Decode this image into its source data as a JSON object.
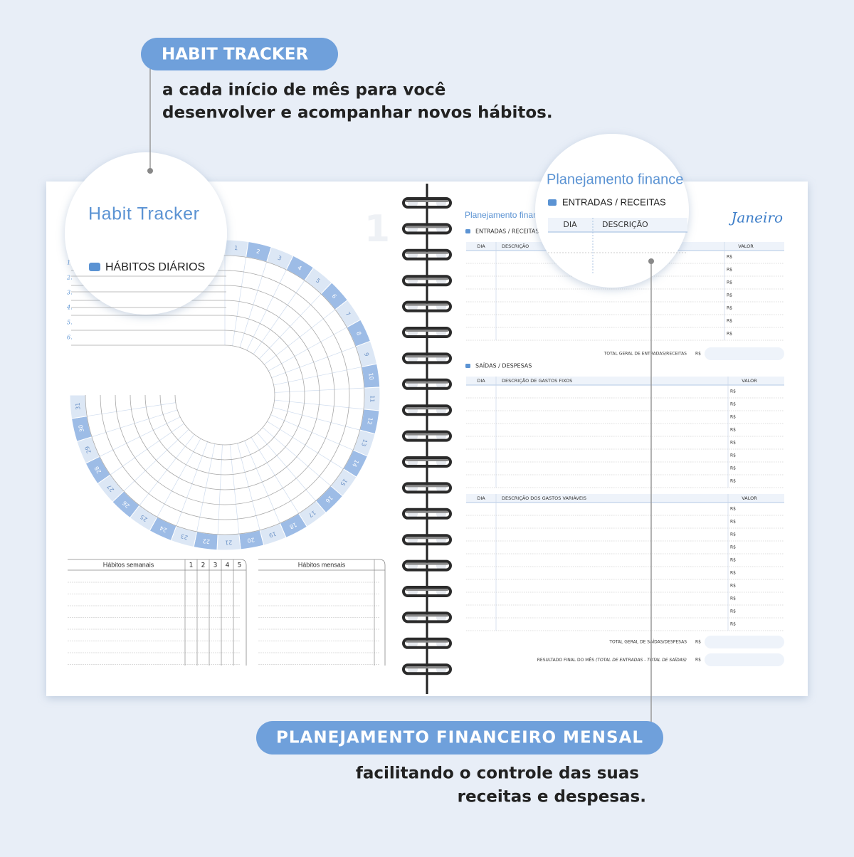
{
  "callouts": [
    {
      "badge": "HABIT TRACKER",
      "lines": [
        "a cada início de mês para você",
        "desenvolver e acompanhar novos hábitos."
      ]
    },
    {
      "badge": "PLANEJAMENTO FINANCEIRO MENSAL",
      "lines": [
        "facilitando o controle das suas",
        "receitas e despesas."
      ]
    }
  ],
  "habit_page": {
    "page_number": "1",
    "title": "Habit Tracker",
    "section": "HÁBITOS DIÁRIOS",
    "rows": [
      "1.",
      "2.",
      "3.",
      "4.",
      "5.",
      "6."
    ],
    "days": [
      1,
      2,
      3,
      4,
      5,
      6,
      7,
      8,
      9,
      10,
      11,
      12,
      13,
      14,
      15,
      16,
      17,
      18,
      19,
      20,
      21,
      22,
      23,
      24,
      25,
      26,
      27,
      28,
      29,
      30,
      31
    ],
    "weekly": {
      "title": "Hábitos semanais",
      "weeks": [
        "1",
        "2",
        "3",
        "4",
        "5"
      ]
    },
    "monthly": {
      "title": "Hábitos mensais"
    }
  },
  "finance_page": {
    "title": "Planejamento finance",
    "month": "Janeiro",
    "currency": "R$",
    "income": {
      "heading": "ENTRADAS / RECEITAS",
      "columns": [
        "DIA",
        "DESCRIÇÃO",
        "VALOR"
      ],
      "total": "TOTAL GERAL DE ENTRADAS/RECEITAS"
    },
    "expenses": {
      "heading": "SAÍDAS / DESPESAS",
      "fixed_columns": [
        "DIA",
        "DESCRIÇÃO DE GASTOS FIXOS",
        "VALOR"
      ],
      "variable_columns": [
        "DIA",
        "DESCRIÇÃO DOS GASTOS VARIÁVEIS",
        "VALOR"
      ],
      "total": "TOTAL GERAL DE SAÍDAS/DESPESAS"
    },
    "result": "RESULTADO FINAL DO MÊS",
    "result_note": "(TOTAL DE ENTRADAS - TOTAL DE SAÍDAS)"
  }
}
